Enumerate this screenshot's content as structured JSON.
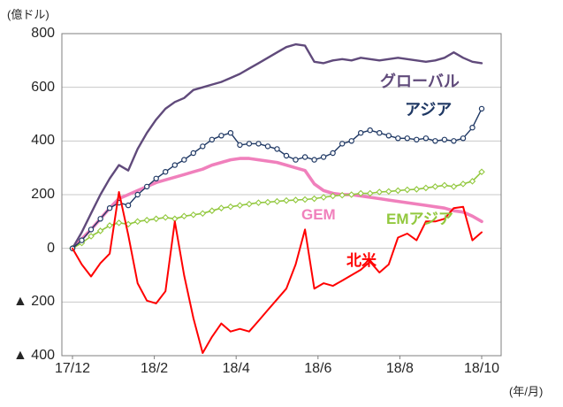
{
  "chart": {
    "unit_y": "(億ドル)",
    "unit_x": "(年/月)"
  },
  "chart_data": {
    "type": "line",
    "x_axis": {
      "label": "(年/月)",
      "tick_labels": [
        "17/12",
        "18/2",
        "18/4",
        "18/6",
        "18/8",
        "18/10"
      ],
      "tick_positions": [
        0,
        8.8,
        17.6,
        26.4,
        35.2,
        44
      ]
    },
    "y_axis": {
      "label": "(億ドル)",
      "range": [
        -400,
        800
      ],
      "ticks": [
        {
          "value": 800,
          "label": "800"
        },
        {
          "value": 600,
          "label": "600"
        },
        {
          "value": 400,
          "label": "400"
        },
        {
          "value": 200,
          "label": "200"
        },
        {
          "value": 0,
          "label": "0"
        },
        {
          "value": -200,
          "label": "▲ 200"
        },
        {
          "value": -400,
          "label": "▲ 400"
        }
      ],
      "gridlines": [
        600,
        400,
        200,
        0,
        -200
      ]
    },
    "legend_position": "inline-annotations",
    "grid": true,
    "series": [
      {
        "id": "global",
        "name": "グローバル",
        "color": "#604a7b",
        "width": 2.4,
        "marker": "none",
        "values": [
          0,
          60,
          130,
          200,
          260,
          310,
          290,
          370,
          430,
          480,
          520,
          545,
          560,
          590,
          600,
          610,
          620,
          635,
          650,
          670,
          690,
          710,
          730,
          750,
          760,
          755,
          695,
          690,
          700,
          705,
          700,
          710,
          705,
          700,
          705,
          710,
          705,
          700,
          695,
          700,
          710,
          730,
          710,
          695,
          690
        ]
      },
      {
        "id": "asia",
        "name": "アジア",
        "color": "#1f3864",
        "width": 1.4,
        "marker": "circle",
        "values": [
          0,
          30,
          70,
          110,
          150,
          170,
          160,
          200,
          230,
          260,
          285,
          310,
          330,
          355,
          380,
          405,
          420,
          430,
          385,
          390,
          390,
          380,
          370,
          345,
          330,
          340,
          330,
          340,
          355,
          390,
          400,
          430,
          440,
          430,
          420,
          410,
          410,
          405,
          410,
          400,
          405,
          400,
          410,
          450,
          520
        ]
      },
      {
        "id": "gem",
        "name": "GEM",
        "color": "#f080bc",
        "width": 3.6,
        "marker": "none",
        "values": [
          0,
          35,
          70,
          110,
          150,
          185,
          200,
          215,
          230,
          245,
          255,
          265,
          275,
          285,
          295,
          310,
          320,
          330,
          335,
          335,
          330,
          325,
          320,
          310,
          300,
          290,
          240,
          215,
          205,
          200,
          200,
          195,
          190,
          185,
          180,
          175,
          170,
          165,
          160,
          155,
          150,
          140,
          135,
          120,
          100
        ]
      },
      {
        "id": "em_asia",
        "name": "EMアジア",
        "color": "#92c83e",
        "width": 1.6,
        "marker": "diamond",
        "values": [
          0,
          20,
          45,
          65,
          85,
          95,
          90,
          100,
          105,
          110,
          115,
          110,
          120,
          125,
          130,
          140,
          150,
          155,
          160,
          165,
          170,
          172,
          175,
          178,
          180,
          182,
          185,
          190,
          195,
          198,
          200,
          205,
          205,
          210,
          212,
          215,
          218,
          220,
          225,
          230,
          235,
          230,
          240,
          250,
          285
        ]
      },
      {
        "id": "north_america",
        "name": "北米",
        "color": "#ff0000",
        "width": 2.0,
        "marker": "none",
        "values": [
          0,
          -60,
          -105,
          -55,
          -20,
          210,
          50,
          -130,
          -195,
          -205,
          -160,
          100,
          -100,
          -260,
          -390,
          -330,
          -280,
          -310,
          -300,
          -310,
          -270,
          -230,
          -190,
          -150,
          -60,
          70,
          -150,
          -130,
          -140,
          -120,
          -100,
          -80,
          -50,
          -90,
          -60,
          40,
          55,
          30,
          100,
          100,
          110,
          150,
          155,
          30,
          60
        ]
      }
    ],
    "draw_order": [
      "gem",
      "em_asia",
      "global",
      "asia",
      "north_america"
    ]
  }
}
